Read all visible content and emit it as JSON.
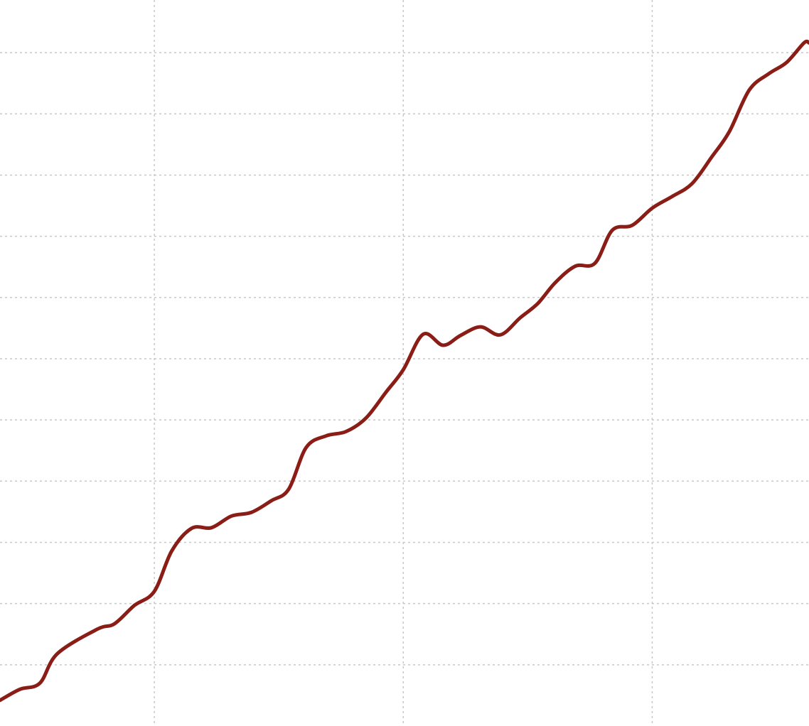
{
  "chart_data": {
    "type": "line",
    "title": "",
    "xlabel": "",
    "ylabel": "",
    "xlim": [
      0.38,
      3.63
    ],
    "ylim": [
      0,
      11.86
    ],
    "x_gridlines": [
      1,
      2,
      3
    ],
    "y_gridlines": [
      1,
      2,
      3,
      4,
      5,
      6,
      7,
      8,
      9,
      10,
      11
    ],
    "grid": true,
    "grid_style": "dotted",
    "line_color": "#8b1d17",
    "grid_color": "#c8c8c8",
    "series": [
      {
        "x": [
          0.38,
          0.46,
          0.54,
          0.61,
          0.77,
          0.84,
          0.92,
          1.0,
          1.07,
          1.15,
          1.23,
          1.31,
          1.39,
          1.47,
          1.54,
          1.61,
          1.69,
          1.77,
          1.85,
          1.93,
          2.0,
          2.08,
          2.16,
          2.23,
          2.31,
          2.39,
          2.47,
          2.54,
          2.61,
          2.69,
          2.77,
          2.84,
          2.92,
          3.0,
          3.08,
          3.16,
          3.24,
          3.31,
          3.39,
          3.47,
          3.54,
          3.61,
          3.63
        ],
        "y": [
          0.42,
          0.6,
          0.7,
          1.18,
          1.58,
          1.67,
          1.97,
          2.2,
          2.86,
          3.23,
          3.24,
          3.43,
          3.49,
          3.68,
          3.87,
          4.55,
          4.74,
          4.81,
          5.03,
          5.45,
          5.82,
          6.4,
          6.22,
          6.38,
          6.52,
          6.39,
          6.67,
          6.9,
          7.24,
          7.51,
          7.56,
          8.1,
          8.18,
          8.46,
          8.65,
          8.86,
          9.3,
          9.71,
          10.39,
          10.66,
          10.84,
          11.16,
          11.16
        ]
      }
    ]
  }
}
